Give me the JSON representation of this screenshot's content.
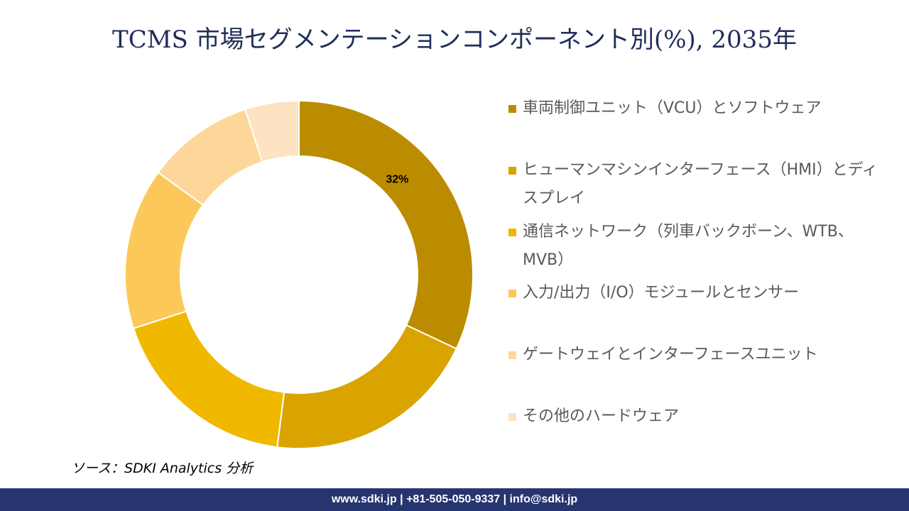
{
  "chart_data": {
    "type": "donut",
    "title": "TCMS 市場セグメンテーションコンポーネント別(%), 2035年",
    "categories": [
      "車両制御ユニット（VCU）とソフトウェア",
      "ヒューマンマシンインターフェース（HMI）とディスプレイ",
      "通信ネットワーク（列車バックボーン、WTB、MVB）",
      "入力/出力（I/O）モジュールとセンサー",
      "ゲートウェイとインターフェースユニット",
      "その他のハードウェア"
    ],
    "values": [
      32,
      20,
      18,
      15,
      10,
      5
    ],
    "value_labels": [
      "32%",
      null,
      null,
      null,
      null,
      null
    ],
    "colors": [
      "#bb8c00",
      "#d9a400",
      "#f1b800",
      "#fcc85a",
      "#fdd699",
      "#fde3c2"
    ],
    "legend": "right"
  },
  "source": "ソース：SDKI Analytics 分析",
  "footer": "www.sdki.jp | +81-505-050-9337 | info@sdki.jp"
}
